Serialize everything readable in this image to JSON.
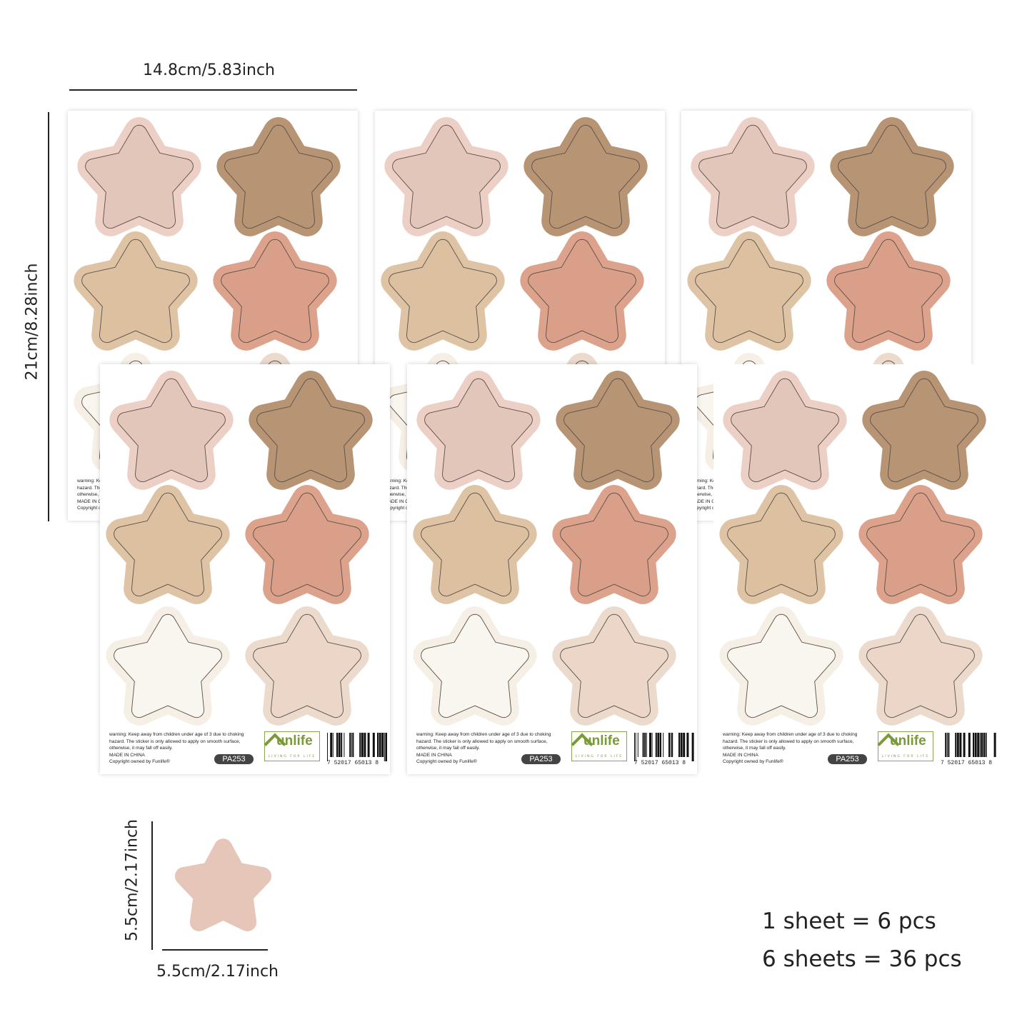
{
  "dimensions": {
    "sheet_width": "14.8cm/5.83inch",
    "sheet_height": "21cm/8.28inch",
    "star_height": "5.5cm/2.17inch",
    "star_width": "5.5cm/2.17inch"
  },
  "sheet": {
    "warning_lines": [
      "warning: Keep away from children under age of 3 due to choking",
      "hazard. The sticker is only allowed to apply on smooth surface,",
      "otherwise, it may fall off easily.",
      "MADE IN CHINA",
      "Copyright owned by Funlife®"
    ],
    "product_code": "PA253",
    "logo_brand": "unlife",
    "logo_tagline": "LIVING FOR LIFE",
    "barcode_digits": [
      "7",
      "52017",
      "65013",
      "8"
    ]
  },
  "star_colors": [
    {
      "name": "blush",
      "outer": "#ecd0c6",
      "inner": "#e3c6ba"
    },
    {
      "name": "mocha",
      "outer": "#b69474",
      "inner": "#b69474"
    },
    {
      "name": "sand",
      "outer": "#dec4a5",
      "inner": "#dcc09f"
    },
    {
      "name": "terracotta",
      "outer": "#dca28c",
      "inner": "#d99f88"
    },
    {
      "name": "cream",
      "outer": "#f5efe6",
      "inner": "#f9f5ef"
    },
    {
      "name": "nude",
      "outer": "#ecdacd",
      "inner": "#ebd6c8"
    }
  ],
  "sample_star_color": "#e6c6b8",
  "summary": {
    "per_sheet": "1 sheet = 6 pcs",
    "total": "6 sheets = 36 pcs"
  }
}
